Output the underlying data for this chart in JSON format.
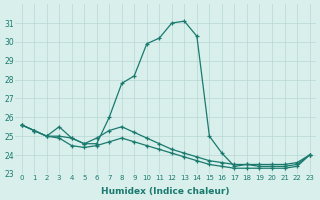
{
  "xlabel": "Humidex (Indice chaleur)",
  "x": [
    0,
    1,
    2,
    3,
    4,
    5,
    6,
    7,
    8,
    9,
    10,
    11,
    12,
    13,
    14,
    15,
    16,
    17,
    18,
    19,
    20,
    21,
    22,
    23
  ],
  "line1": [
    25.6,
    25.3,
    25.0,
    25.5,
    24.9,
    24.6,
    24.6,
    26.0,
    27.8,
    28.2,
    29.9,
    30.2,
    31.0,
    31.1,
    30.3,
    25.0,
    24.1,
    23.4,
    23.5,
    23.4,
    23.4,
    23.4,
    23.5,
    24.0
  ],
  "line2": [
    25.6,
    25.3,
    25.0,
    24.9,
    24.5,
    24.4,
    24.5,
    24.7,
    24.9,
    24.7,
    24.5,
    24.3,
    24.1,
    23.9,
    23.7,
    23.5,
    23.4,
    23.3,
    23.3,
    23.3,
    23.3,
    23.3,
    23.4,
    24.0
  ],
  "line3": [
    25.6,
    25.3,
    25.0,
    25.0,
    24.9,
    24.6,
    24.9,
    25.3,
    25.5,
    25.2,
    24.9,
    24.6,
    24.3,
    24.1,
    23.9,
    23.7,
    23.6,
    23.5,
    23.5,
    23.5,
    23.5,
    23.5,
    23.6,
    24.0
  ],
  "line_color": "#1a7a6e",
  "bg_color": "#d8efec",
  "grid_color": "#b8d8d4",
  "ylim": [
    23,
    32
  ],
  "xlim": [
    -0.5,
    23.5
  ],
  "yticks": [
    23,
    24,
    25,
    26,
    27,
    28,
    29,
    30,
    31
  ],
  "xticks": [
    0,
    1,
    2,
    3,
    4,
    5,
    6,
    7,
    8,
    9,
    10,
    11,
    12,
    13,
    14,
    15,
    16,
    17,
    18,
    19,
    20,
    21,
    22,
    23
  ]
}
